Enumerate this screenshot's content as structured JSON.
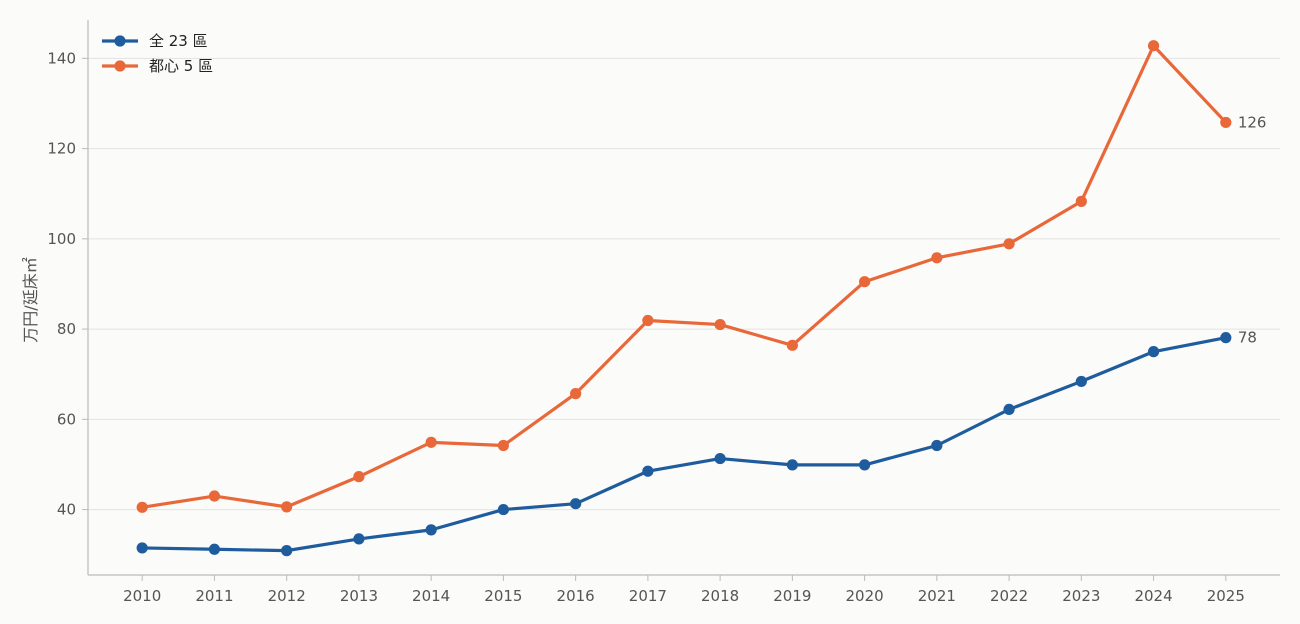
{
  "chart_data": {
    "type": "line",
    "ylabel": "万円/延床㎡",
    "xlabel": "",
    "x": [
      2010,
      2011,
      2012,
      2013,
      2014,
      2015,
      2016,
      2017,
      2018,
      2019,
      2020,
      2021,
      2022,
      2023,
      2024,
      2025
    ],
    "ylim": [
      25.5,
      148.5
    ],
    "xlim": [
      2009.25,
      2025.75
    ],
    "yticks": [
      40,
      60,
      80,
      100,
      120,
      140
    ],
    "grid": true,
    "legend_position": "top-left",
    "series": [
      {
        "name": "全 23 區",
        "color": "#1f5c9e",
        "values": [
          31.5,
          31.2,
          30.9,
          33.5,
          35.5,
          40.0,
          41.3,
          48.5,
          51.3,
          49.9,
          49.9,
          54.2,
          62.2,
          68.4,
          75.0,
          78.1
        ],
        "end_label": "78"
      },
      {
        "name": "都心 5 區",
        "color": "#e8683a",
        "values": [
          40.5,
          43.0,
          40.6,
          47.3,
          54.9,
          54.2,
          65.7,
          81.9,
          81.0,
          76.4,
          90.5,
          95.8,
          98.9,
          108.3,
          142.8,
          125.8
        ],
        "end_label": "126"
      }
    ]
  }
}
